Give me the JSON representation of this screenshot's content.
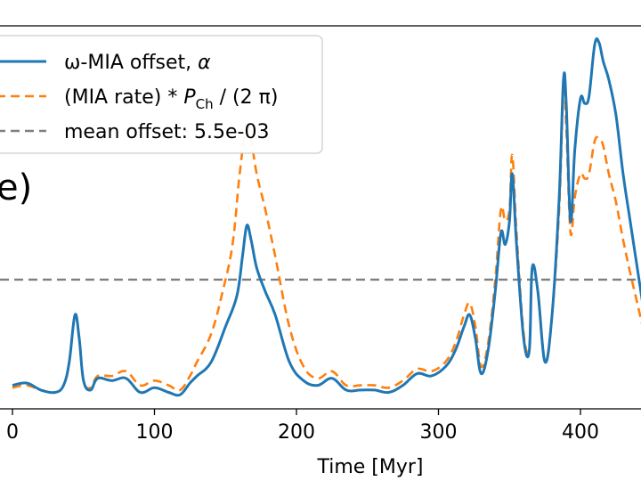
{
  "chart_data": {
    "type": "line",
    "panel_label": "e)",
    "xlabel": "Time [Myr]",
    "ylabel": "",
    "xlim": [
      -12,
      445
    ],
    "ylim": [
      0.0,
      0.0163
    ],
    "x_ticks": [
      0,
      100,
      200,
      300,
      400
    ],
    "x_tick_labels": [
      "0",
      "100",
      "200",
      "300",
      "400"
    ],
    "legend": {
      "position": "upper-left",
      "entries": [
        {
          "label_pre": "ω-MIA offset, ",
          "label_math": "α",
          "series": "omega_mia_offset"
        },
        {
          "label_pre": "(MIA rate) * ",
          "label_math": "P",
          "label_sub": "Ch",
          "label_post": " / (2 π)",
          "series": "mia_rate_scaled"
        },
        {
          "label_pre": "mean offset: 5.5e-03",
          "series": "mean_offset"
        }
      ]
    },
    "series": [
      {
        "name": "omega_mia_offset",
        "color": "#1f77b4",
        "style": "solid",
        "x": [
          0,
          10,
          20,
          30,
          36,
          40,
          44,
          47,
          50,
          55,
          60,
          70,
          80,
          90,
          100,
          110,
          118,
          125,
          130,
          140,
          150,
          158,
          162,
          165,
          168,
          172,
          178,
          185,
          195,
          205,
          215,
          225,
          235,
          245,
          255,
          265,
          275,
          285,
          295,
          305,
          312,
          318,
          322,
          326,
          330,
          335,
          340,
          344,
          347,
          350,
          352,
          355,
          360,
          364,
          366,
          370,
          375,
          380,
          385,
          388,
          390,
          393,
          396,
          400,
          403,
          406,
          410,
          413,
          416,
          420,
          425,
          430,
          435,
          440,
          445
        ],
        "y": [
          0.001,
          0.0011,
          0.0008,
          0.0007,
          0.001,
          0.002,
          0.004,
          0.003,
          0.0012,
          0.0008,
          0.0013,
          0.0012,
          0.0013,
          0.0007,
          0.0009,
          0.0007,
          0.0006,
          0.0011,
          0.0014,
          0.002,
          0.0035,
          0.0048,
          0.0065,
          0.0078,
          0.0072,
          0.006,
          0.005,
          0.004,
          0.002,
          0.0012,
          0.001,
          0.0013,
          0.0008,
          0.0008,
          0.0008,
          0.0007,
          0.001,
          0.0015,
          0.0014,
          0.0018,
          0.0025,
          0.0035,
          0.004,
          0.003,
          0.0015,
          0.0025,
          0.005,
          0.0075,
          0.007,
          0.008,
          0.01,
          0.007,
          0.003,
          0.0025,
          0.006,
          0.005,
          0.002,
          0.004,
          0.009,
          0.014,
          0.013,
          0.008,
          0.011,
          0.0132,
          0.013,
          0.0133,
          0.0155,
          0.0156,
          0.0148,
          0.014,
          0.0125,
          0.01,
          0.008,
          0.006,
          0.004
        ]
      },
      {
        "name": "mia_rate_scaled",
        "color": "#ff7f0e",
        "style": "dashed",
        "x": [
          0,
          10,
          20,
          30,
          36,
          40,
          44,
          47,
          50,
          55,
          60,
          70,
          80,
          90,
          100,
          110,
          118,
          125,
          130,
          140,
          148,
          155,
          160,
          165,
          168,
          172,
          178,
          185,
          195,
          205,
          215,
          225,
          235,
          245,
          255,
          265,
          275,
          285,
          295,
          305,
          312,
          318,
          322,
          326,
          330,
          335,
          340,
          344,
          347,
          350,
          352,
          355,
          360,
          364,
          366,
          370,
          375,
          380,
          385,
          388,
          390,
          393,
          396,
          400,
          403,
          406,
          410,
          413,
          416,
          420,
          425,
          430,
          435,
          440,
          445
        ],
        "y": [
          0.0009,
          0.001,
          0.0008,
          0.0007,
          0.001,
          0.002,
          0.004,
          0.003,
          0.0012,
          0.0009,
          0.0014,
          0.0014,
          0.0016,
          0.001,
          0.0012,
          0.001,
          0.0008,
          0.0014,
          0.002,
          0.0032,
          0.005,
          0.007,
          0.01,
          0.0122,
          0.0115,
          0.01,
          0.0085,
          0.0065,
          0.0035,
          0.0018,
          0.0013,
          0.0016,
          0.001,
          0.001,
          0.001,
          0.0009,
          0.0012,
          0.0017,
          0.0016,
          0.002,
          0.0028,
          0.004,
          0.0045,
          0.0035,
          0.0018,
          0.0028,
          0.0055,
          0.0085,
          0.008,
          0.0085,
          0.0108,
          0.0075,
          0.0032,
          0.0027,
          0.006,
          0.005,
          0.002,
          0.004,
          0.0085,
          0.0135,
          0.012,
          0.0075,
          0.009,
          0.01,
          0.0098,
          0.01,
          0.0114,
          0.0115,
          0.0112,
          0.01,
          0.0088,
          0.0072,
          0.0058,
          0.0045,
          0.0032
        ]
      },
      {
        "name": "mean_offset",
        "color": "#7f7f7f",
        "style": "dashed",
        "value": 0.0055
      }
    ]
  }
}
